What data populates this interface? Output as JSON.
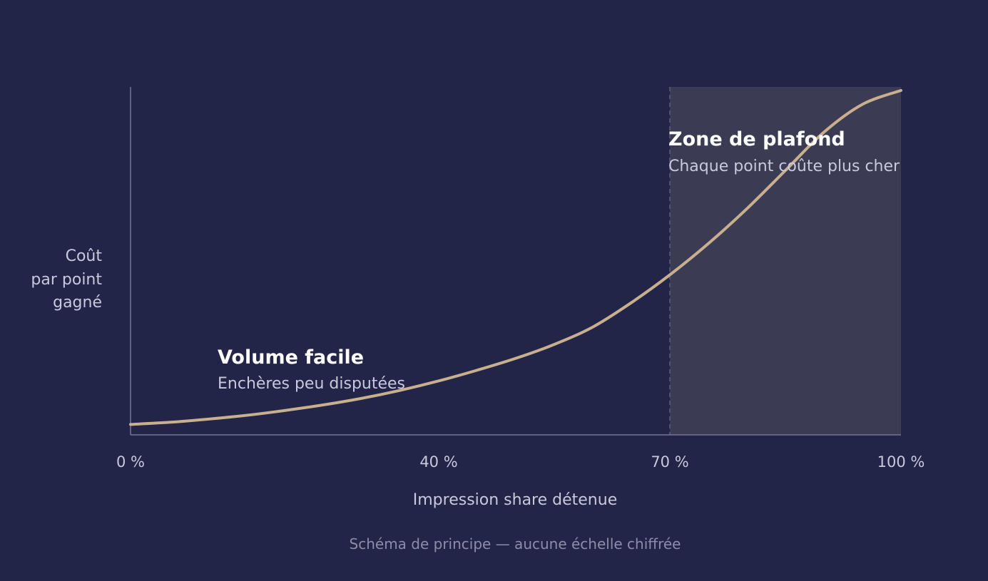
{
  "chart_data": {
    "type": "line",
    "title": "",
    "xlabel": "Impression share détenue",
    "ylabel_lines": [
      "Coût",
      "par point",
      "gagné"
    ],
    "x_ticks": [
      "0 %",
      "40 %",
      "70 %",
      "100 %"
    ],
    "x_tick_values": [
      0,
      40,
      70,
      100
    ],
    "xlim": [
      0,
      100
    ],
    "ylim": [
      0,
      1
    ],
    "grid": false,
    "colors": {
      "background": "#222448",
      "curve": "#c8b08f",
      "zone": "#3b3b54",
      "axis": "#74739a"
    },
    "series": [
      {
        "x": [
          0,
          5,
          10,
          15,
          20,
          25,
          30,
          35,
          40,
          45,
          50,
          55,
          60,
          65,
          70,
          75,
          80,
          85,
          90,
          95,
          100
        ],
        "values": [
          0.03,
          0.036,
          0.045,
          0.056,
          0.07,
          0.086,
          0.105,
          0.128,
          0.155,
          0.186,
          0.22,
          0.26,
          0.31,
          0.38,
          0.46,
          0.55,
          0.65,
          0.76,
          0.87,
          0.95,
          0.99
        ]
      }
    ],
    "zone": {
      "from": 70,
      "to": 100
    },
    "annotations": {
      "left": {
        "title": "Volume facile",
        "subtitle": "Enchères peu disputées"
      },
      "right": {
        "title": "Zone de plafond",
        "subtitle": "Chaque point coûte plus cher"
      }
    },
    "caption": "Schéma de principe — aucune échelle chiffrée"
  }
}
